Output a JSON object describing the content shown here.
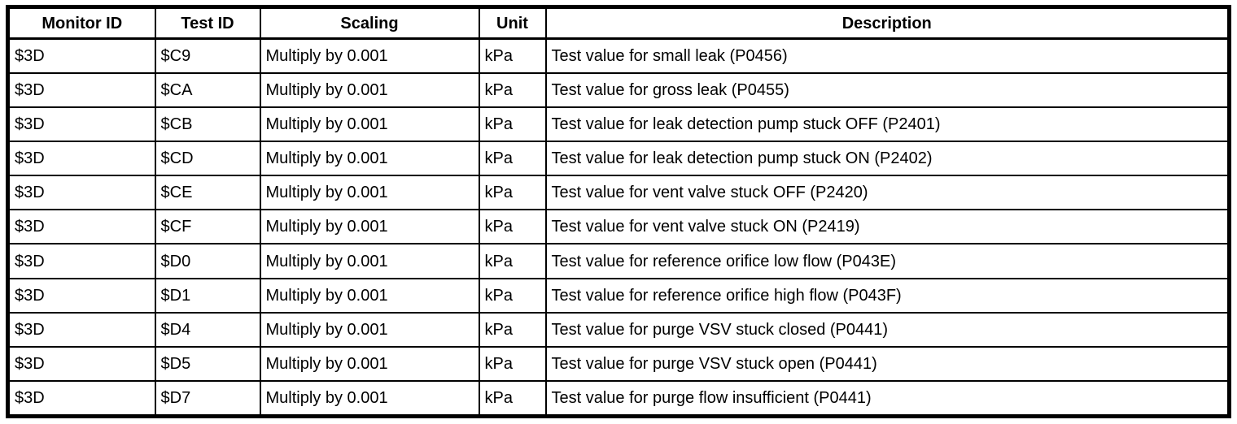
{
  "page": {
    "background_color": "#ffffff",
    "text_color": "#000000",
    "border_color": "#000000"
  },
  "table": {
    "columns": [
      {
        "key": "monitor-id",
        "label": "Monitor ID"
      },
      {
        "key": "test-id",
        "label": "Test ID"
      },
      {
        "key": "scaling",
        "label": "Scaling"
      },
      {
        "key": "unit",
        "label": "Unit"
      },
      {
        "key": "description",
        "label": "Description"
      }
    ],
    "rows": [
      [
        "$3D",
        "$C9",
        "Multiply by 0.001",
        "kPa",
        "Test value for small leak (P0456)"
      ],
      [
        "$3D",
        "$CA",
        "Multiply by 0.001",
        "kPa",
        "Test value for gross leak (P0455)"
      ],
      [
        "$3D",
        "$CB",
        "Multiply by 0.001",
        "kPa",
        "Test value for leak detection pump stuck OFF (P2401)"
      ],
      [
        "$3D",
        "$CD",
        "Multiply by 0.001",
        "kPa",
        "Test value for leak detection pump stuck ON (P2402)"
      ],
      [
        "$3D",
        "$CE",
        "Multiply by 0.001",
        "kPa",
        "Test value for vent valve stuck OFF (P2420)"
      ],
      [
        "$3D",
        "$CF",
        "Multiply by 0.001",
        "kPa",
        "Test value for vent valve stuck ON (P2419)"
      ],
      [
        "$3D",
        "$D0",
        "Multiply by 0.001",
        "kPa",
        "Test value for reference orifice low flow (P043E)"
      ],
      [
        "$3D",
        "$D1",
        "Multiply by 0.001",
        "kPa",
        "Test value for reference orifice high flow (P043F)"
      ],
      [
        "$3D",
        "$D4",
        "Multiply by 0.001",
        "kPa",
        "Test value for purge VSV stuck closed (P0441)"
      ],
      [
        "$3D",
        "$D5",
        "Multiply by 0.001",
        "kPa",
        "Test value for purge VSV stuck open (P0441)"
      ],
      [
        "$3D",
        "$D7",
        "Multiply by 0.001",
        "kPa",
        "Test value for purge flow insufficient (P0441)"
      ]
    ]
  }
}
